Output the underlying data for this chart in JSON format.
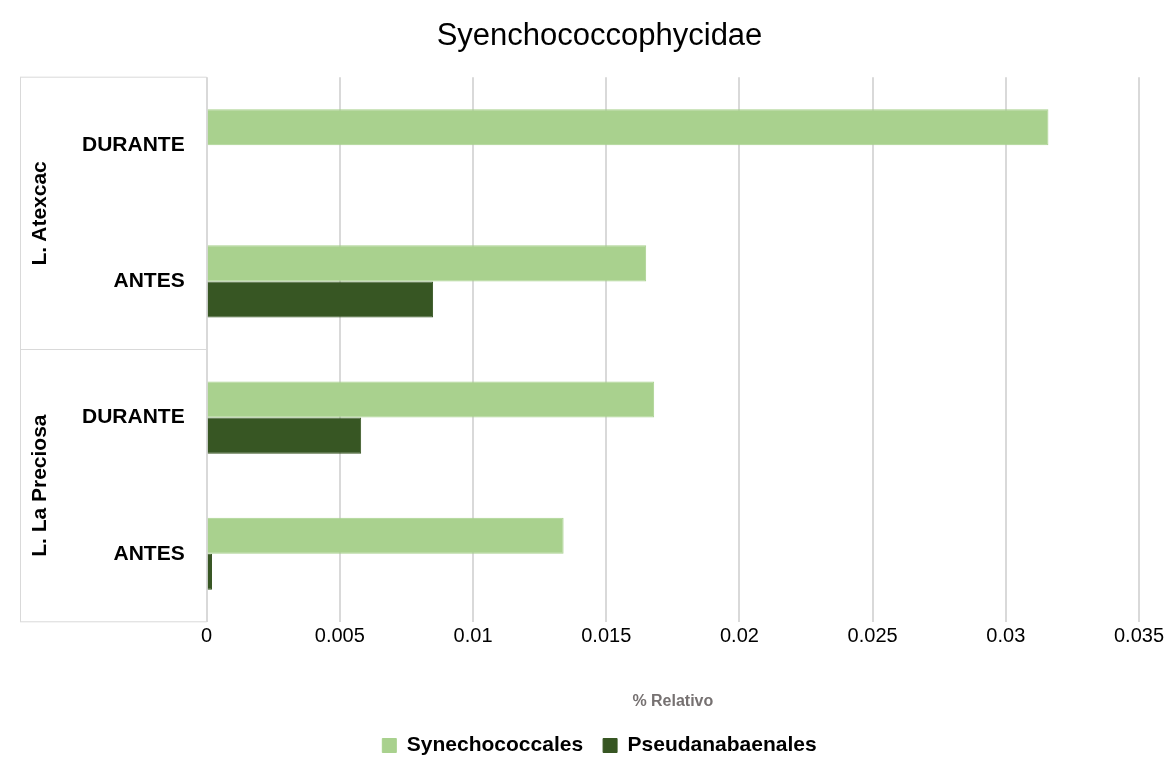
{
  "chart_data": {
    "type": "bar",
    "orientation": "horizontal",
    "title": "Syenchococcophycidae",
    "xlabel": "% Relativo",
    "categories": [
      "DURANTE",
      "ANTES",
      "DURANTE",
      "ANTES"
    ],
    "annotations": [
      "L. Atexcac",
      "L. La Preciosa"
    ],
    "series": [
      {
        "name": "Synechococcales",
        "color": "#a9d18e",
        "values": [
          0.0316,
          0.0165,
          0.0168,
          0.0134
        ]
      },
      {
        "name": "Pseudanabaenales",
        "color": "#375623",
        "values": [
          0,
          0.0085,
          0.0058,
          0.0002
        ]
      }
    ],
    "xlim": [
      0,
      0.035
    ],
    "xticks": [
      0,
      0.005,
      0.01,
      0.015,
      0.02,
      0.025,
      0.03,
      0.035
    ],
    "grid": "x",
    "legend": "bottom"
  }
}
